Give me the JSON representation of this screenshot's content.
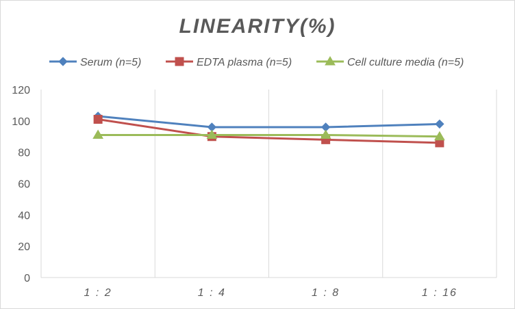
{
  "chart_data": {
    "type": "line",
    "title": "LINEARITY(%)",
    "xlabel": "",
    "ylabel": "",
    "categories": [
      "1:2",
      "1:4",
      "1:8",
      "1:16"
    ],
    "ylim": [
      0,
      120
    ],
    "yticks": [
      0,
      20,
      40,
      60,
      80,
      100,
      120
    ],
    "grid": "vertical",
    "legend_position": "top",
    "series": [
      {
        "name": "Serum (n=5)",
        "values": [
          103,
          96,
          96,
          98
        ],
        "color": "#4f81bd",
        "marker": "diamond"
      },
      {
        "name": "EDTA plasma (n=5)",
        "values": [
          101,
          90,
          88,
          86
        ],
        "color": "#c0504d",
        "marker": "square"
      },
      {
        "name": "Cell culture media (n=5)",
        "values": [
          91,
          91,
          91,
          90
        ],
        "color": "#9bbb59",
        "marker": "triangle"
      }
    ]
  }
}
